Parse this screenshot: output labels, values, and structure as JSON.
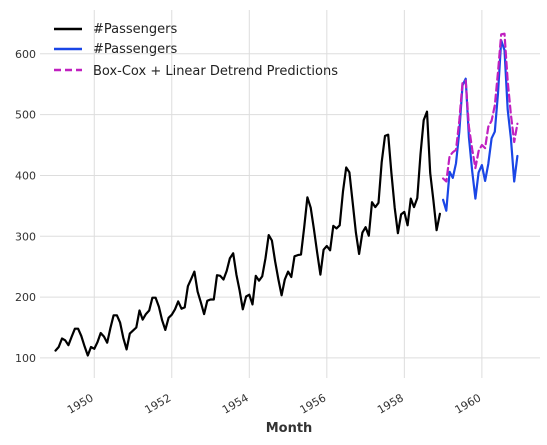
{
  "chart_data": {
    "type": "line",
    "title": "",
    "xlabel": "Month",
    "ylabel": "",
    "xlim": [
      1948.6,
      1961.5
    ],
    "ylim": [
      67,
      672
    ],
    "grid": true,
    "legend_position": "top-left",
    "x_ticks": [
      "1950",
      "1952",
      "1954",
      "1956",
      "1958",
      "1960"
    ],
    "x_tick_values": [
      1950,
      1952,
      1954,
      1956,
      1958,
      1960
    ],
    "y_ticks": [
      "100",
      "200",
      "300",
      "400",
      "500",
      "600"
    ],
    "y_tick_values": [
      100,
      200,
      300,
      400,
      500,
      600
    ],
    "series": [
      {
        "name": "#Passengers",
        "color": "#000000",
        "dashed": false,
        "start_year": 1949,
        "start_month": 1,
        "values": [
          112,
          118,
          132,
          129,
          121,
          135,
          148,
          148,
          136,
          119,
          104,
          118,
          115,
          126,
          141,
          135,
          125,
          149,
          170,
          170,
          158,
          133,
          114,
          140,
          145,
          150,
          178,
          163,
          172,
          178,
          199,
          199,
          184,
          162,
          146,
          166,
          171,
          180,
          193,
          181,
          183,
          218,
          230,
          242,
          209,
          191,
          172,
          194,
          196,
          196,
          236,
          235,
          229,
          243,
          264,
          272,
          237,
          211,
          180,
          201,
          204,
          188,
          235,
          227,
          234,
          264,
          302,
          293,
          259,
          229,
          203,
          229,
          242,
          233,
          267,
          269,
          270,
          315,
          364,
          347,
          312,
          274,
          237,
          278,
          284,
          277,
          317,
          313,
          318,
          374,
          413,
          405,
          355,
          306,
          271,
          306,
          315,
          301,
          356,
          348,
          355,
          422,
          465,
          467,
          404,
          347,
          305,
          336,
          340,
          318,
          362,
          348,
          363,
          435,
          491,
          505,
          404,
          359,
          310,
          337
        ]
      },
      {
        "name": "#Passengers",
        "color": "#1a46e6",
        "dashed": false,
        "start_year": 1959,
        "start_month": 1,
        "values": [
          360,
          342,
          406,
          396,
          420,
          472,
          548,
          559,
          463,
          407,
          362,
          405,
          417,
          391,
          419,
          461,
          472,
          535,
          622,
          606,
          508,
          461,
          390,
          432
        ]
      },
      {
        "name": "Box-Cox + Linear Detrend Predictions",
        "color": "#c020c0",
        "dashed": true,
        "start_year": 1959,
        "start_month": 1,
        "values": [
          395,
          390,
          432,
          438,
          442,
          490,
          552,
          556,
          480,
          443,
          412,
          440,
          450,
          445,
          480,
          490,
          515,
          570,
          632,
          633,
          555,
          500,
          455,
          485
        ]
      }
    ]
  }
}
